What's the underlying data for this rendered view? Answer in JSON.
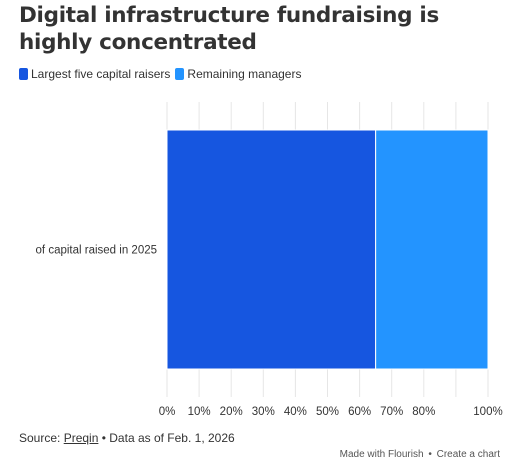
{
  "title": "Digital infrastructure fundraising is highly concentrated",
  "legend": [
    {
      "label": "Largest five capital raisers",
      "color": "#1656e0"
    },
    {
      "label": "Remaining managers",
      "color": "#2394ff"
    }
  ],
  "chart_data": {
    "type": "bar",
    "orientation": "horizontal",
    "stacked": true,
    "categories": [
      "of capital raised in 2025"
    ],
    "series": [
      {
        "name": "Largest five capital raisers",
        "values": [
          65
        ],
        "color": "#1656e0"
      },
      {
        "name": "Remaining managers",
        "values": [
          35
        ],
        "color": "#2394ff"
      }
    ],
    "xlim": [
      0,
      100
    ],
    "x_ticks": [
      "0%",
      "10%",
      "20%",
      "30%",
      "40%",
      "50%",
      "60%",
      "70%",
      "80%",
      "",
      "100%"
    ],
    "grid": true,
    "legend_position": "top-left"
  },
  "footer": {
    "source_prefix": "Source:",
    "source_link": "Preqin",
    "source_suffix": "• Data as of Feb. 1, 2026",
    "made_with": "Made with Flourish",
    "separator": "•",
    "create": "Create a chart"
  }
}
